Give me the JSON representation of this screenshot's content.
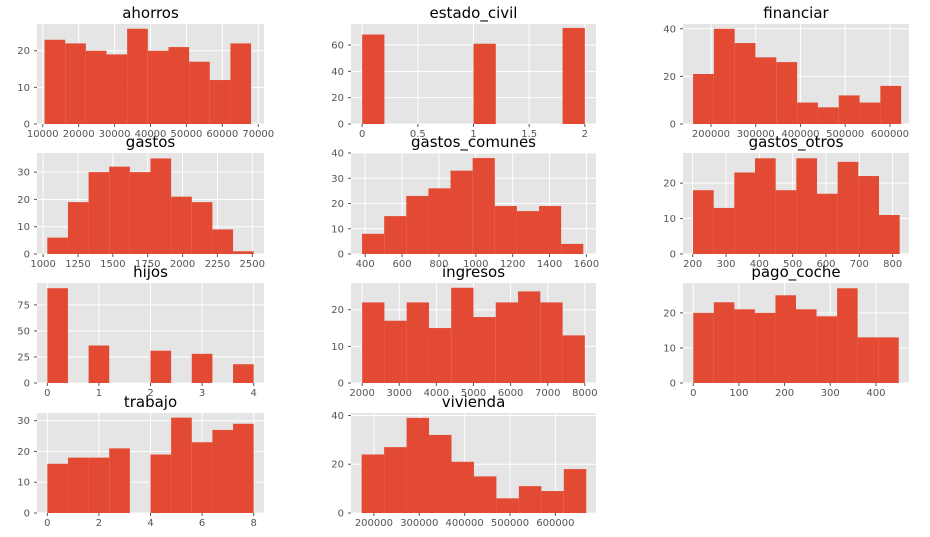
{
  "style": {
    "panel_bg": "#e5e5e5",
    "grid": "#ffffff",
    "bar": "#e24a33",
    "tick_color": "#555555"
  },
  "chart_data": [
    {
      "type": "bar",
      "title": "ahorros",
      "x_ticks": [
        10000,
        20000,
        30000,
        40000,
        50000,
        60000,
        70000
      ],
      "y_ticks": [
        0,
        10,
        20
      ],
      "xlim": [
        8400,
        71600
      ],
      "ylim": [
        0,
        27.3
      ],
      "bin_edges": [
        10500,
        16250,
        22000,
        27750,
        33500,
        39250,
        45000,
        50750,
        56500,
        62250,
        68000
      ],
      "counts": [
        23,
        22,
        20,
        19,
        26,
        20,
        21,
        17,
        12,
        22
      ]
    },
    {
      "type": "bar",
      "title": "estado_civil",
      "x_ticks": [
        0.0,
        0.5,
        1.0,
        1.5,
        2.0
      ],
      "y_ticks": [
        0,
        20,
        40,
        60
      ],
      "xlim": [
        -0.1,
        2.1
      ],
      "ylim": [
        0,
        76
      ],
      "bin_edges": [
        0.0,
        0.2,
        0.4,
        0.6,
        0.8,
        1.0,
        1.2,
        1.4,
        1.6,
        1.8,
        2.0
      ],
      "counts": [
        68,
        0,
        0,
        0,
        0,
        61,
        0,
        0,
        0,
        73
      ]
    },
    {
      "type": "bar",
      "title": "financiar",
      "x_ticks": [
        200000,
        300000,
        400000,
        500000,
        600000
      ],
      "y_ticks": [
        0,
        20,
        40
      ],
      "xlim": [
        137500,
        642500
      ],
      "ylim": [
        0,
        42
      ],
      "bin_edges": [
        160000,
        206500,
        253000,
        299500,
        346000,
        392500,
        439000,
        485500,
        532000,
        578500,
        625000
      ],
      "counts": [
        21,
        40,
        34,
        28,
        26,
        9,
        7,
        12,
        9,
        16
      ]
    },
    {
      "type": "bar",
      "title": "gastos",
      "x_ticks": [
        1000,
        1250,
        1500,
        1750,
        2000,
        2250,
        2500
      ],
      "y_ticks": [
        0,
        10,
        20,
        30
      ],
      "xlim": [
        956,
        2584
      ],
      "ylim": [
        0,
        37
      ],
      "bin_edges": [
        1030,
        1178,
        1326,
        1474,
        1622,
        1770,
        1918,
        2066,
        2214,
        2362,
        2510
      ],
      "counts": [
        6,
        19,
        30,
        32,
        30,
        35,
        21,
        19,
        9,
        1
      ]
    },
    {
      "type": "bar",
      "title": "gastos_comunes",
      "x_ticks": [
        400,
        600,
        800,
        1000,
        1200,
        1400,
        1600
      ],
      "y_ticks": [
        0,
        10,
        20,
        30,
        40
      ],
      "xlim": [
        323,
        1652
      ],
      "ylim": [
        0,
        40
      ],
      "bin_edges": [
        383,
        503,
        623,
        743,
        863,
        983,
        1103,
        1223,
        1343,
        1463,
        1583
      ],
      "counts": [
        8,
        15,
        23,
        26,
        33,
        38,
        19,
        17,
        19,
        4
      ]
    },
    {
      "type": "bar",
      "title": "gastos_otros",
      "x_ticks": [
        200,
        300,
        400,
        500,
        600,
        700,
        800
      ],
      "y_ticks": [
        0,
        10,
        20
      ],
      "xlim": [
        171,
        849
      ],
      "ylim": [
        0,
        28.5
      ],
      "bin_edges": [
        201,
        263,
        325,
        387,
        449,
        511,
        573,
        635,
        697,
        759,
        821
      ],
      "counts": [
        18,
        13,
        23,
        27,
        18,
        27,
        17,
        26,
        22,
        11
      ]
    },
    {
      "type": "bar",
      "title": "hijos",
      "x_ticks": [
        0,
        1,
        2,
        3,
        4
      ],
      "y_ticks": [
        0,
        25,
        50,
        75
      ],
      "xlim": [
        -0.2,
        4.2
      ],
      "ylim": [
        0,
        96
      ],
      "bin_edges": [
        0.0,
        0.4,
        0.8,
        1.2,
        1.6,
        2.0,
        2.4,
        2.8,
        3.2,
        3.6,
        4.0
      ],
      "counts": [
        91,
        0,
        36,
        0,
        0,
        31,
        0,
        28,
        0,
        18
      ]
    },
    {
      "type": "bar",
      "title": "ingresos",
      "x_ticks": [
        2000,
        3000,
        4000,
        5000,
        6000,
        7000,
        8000
      ],
      "y_ticks": [
        0,
        10,
        20
      ],
      "xlim": [
        1700,
        8300
      ],
      "ylim": [
        0,
        27.3
      ],
      "bin_edges": [
        2000,
        2600,
        3200,
        3800,
        4400,
        5000,
        5600,
        6200,
        6800,
        7400,
        8000
      ],
      "counts": [
        22,
        17,
        22,
        15,
        26,
        18,
        22,
        25,
        22,
        13
      ]
    },
    {
      "type": "bar",
      "title": "pago_coche",
      "x_ticks": [
        0,
        100,
        200,
        300,
        400
      ],
      "y_ticks": [
        0,
        10,
        20
      ],
      "xlim": [
        -22.5,
        472.5
      ],
      "ylim": [
        0,
        28.5
      ],
      "bin_edges": [
        0,
        45,
        90,
        135,
        180,
        225,
        270,
        315,
        360,
        405,
        450
      ],
      "counts": [
        20,
        23,
        21,
        20,
        25,
        21,
        19,
        27,
        13,
        13
      ]
    },
    {
      "type": "bar",
      "title": "trabajo",
      "x_ticks": [
        0,
        2,
        4,
        6,
        8
      ],
      "y_ticks": [
        0,
        10,
        20,
        30
      ],
      "xlim": [
        -0.4,
        8.4
      ],
      "ylim": [
        0,
        32.5
      ],
      "bin_edges": [
        0.0,
        0.8,
        1.6,
        2.4,
        3.2,
        4.0,
        4.8,
        5.6,
        6.4,
        7.2,
        8.0
      ],
      "counts": [
        16,
        18,
        18,
        21,
        0,
        19,
        31,
        23,
        27,
        29
      ]
    },
    {
      "type": "bar",
      "title": "vivienda",
      "x_ticks": [
        200000,
        300000,
        400000,
        500000,
        600000
      ],
      "y_ticks": [
        0,
        20,
        40
      ],
      "xlim": [
        149500,
        689500
      ],
      "ylim": [
        0,
        41
      ],
      "bin_edges": [
        173000,
        222500,
        272000,
        321500,
        371000,
        420500,
        470000,
        519500,
        569000,
        618500,
        668000
      ],
      "counts": [
        24,
        27,
        39,
        32,
        21,
        15,
        6,
        11,
        9,
        18
      ]
    }
  ]
}
